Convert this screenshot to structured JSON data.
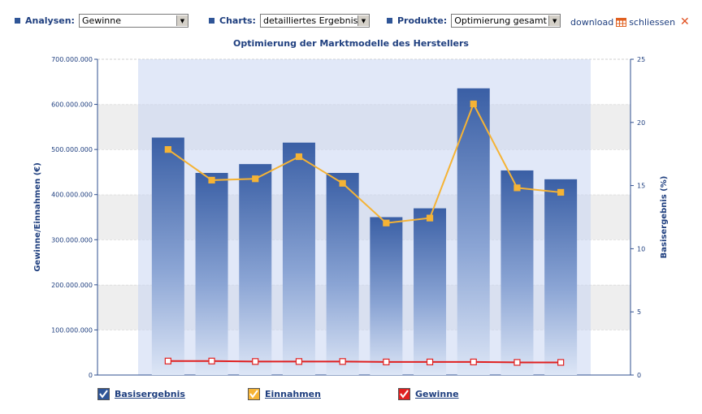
{
  "toolbar": {
    "analysen": {
      "label": "Analysen:",
      "value": "Gewinne"
    },
    "charts": {
      "label": "Charts:",
      "value": "detailliertes Ergebnis"
    },
    "produkte": {
      "label": "Produkte:",
      "value": "Optimierung gesamt"
    },
    "download_label": "download",
    "close_label": "schliessen"
  },
  "colors": {
    "accent": "#1f3f7f",
    "bar": "#3f64a8",
    "einnahmen": "#f5b335",
    "gewinne": "#e02020"
  },
  "chart_data": {
    "type": "bar",
    "title": "Optimierung der Marktmodelle des Herstellers",
    "ylabel_left": "Gewinne/Einnahmen (€)",
    "ylabel_right": "Basisergebnis (%)",
    "yticks_left": [
      "0",
      "100.000.000",
      "200.000.000",
      "300.000.000",
      "400.000.000",
      "500.000.000",
      "600.000.000",
      "700.000.000"
    ],
    "yticks_right": [
      "0",
      "5",
      "10",
      "15",
      "20",
      "25"
    ],
    "ylim_left": [
      0,
      700000000
    ],
    "ylim_right": [
      0,
      25
    ],
    "categories": [
      "",
      "",
      "",
      "",
      "",
      "",
      "",
      "",
      "",
      ""
    ],
    "series": [
      {
        "name": "Basisergebnis",
        "kind": "bar",
        "axis": "right",
        "values": [
          18.8,
          16.0,
          16.7,
          18.4,
          16.0,
          12.5,
          13.2,
          22.7,
          16.2,
          15.5
        ]
      },
      {
        "name": "Einnahmen",
        "kind": "line",
        "axis": "left",
        "values": [
          500000000,
          432000000,
          435000000,
          484000000,
          425000000,
          337000000,
          348000000,
          601000000,
          415000000,
          405000000
        ]
      },
      {
        "name": "Gewinne",
        "kind": "line",
        "axis": "left",
        "values": [
          31000000,
          31000000,
          30000000,
          30000000,
          30000000,
          29000000,
          29000000,
          29000000,
          28000000,
          28000000
        ]
      }
    ],
    "grid": true
  },
  "legend": [
    {
      "name": "Basisergebnis"
    },
    {
      "name": "Einnahmen"
    },
    {
      "name": "Gewinne"
    }
  ]
}
